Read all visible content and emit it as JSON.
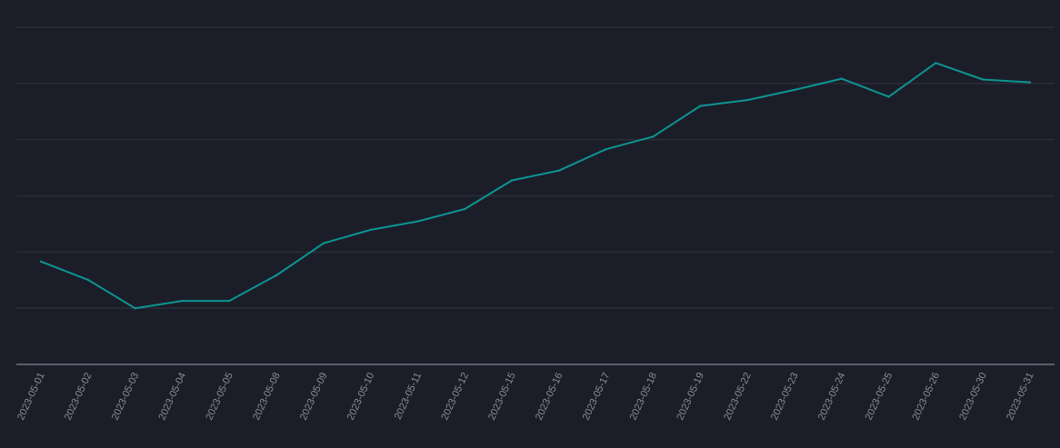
{
  "chart_data": {
    "type": "line",
    "title": "",
    "xlabel": "",
    "ylabel": "",
    "categories": [
      "2023-05-01",
      "2023-05-02",
      "2023-05-03",
      "2023-05-04",
      "2023-05-05",
      "2023-05-08",
      "2023-05-09",
      "2023-05-10",
      "2023-05-11",
      "2023-05-12",
      "2023-05-15",
      "2023-05-16",
      "2023-05-17",
      "2023-05-18",
      "2023-05-19",
      "2023-05-22",
      "2023-05-23",
      "2023-05-24",
      "2023-05-25",
      "2023-05-26",
      "2023-05-30",
      "2023-05-31"
    ],
    "series": [
      {
        "values": [
          0.83,
          0.505,
          0.0,
          0.13,
          0.13,
          0.585,
          1.155,
          1.395,
          1.545,
          1.765,
          2.275,
          2.45,
          2.83,
          3.055,
          3.6,
          3.705,
          3.885,
          4.085,
          3.765,
          4.365,
          4.07,
          4.02
        ],
        "color": "#0d9494"
      }
    ],
    "ylim": [
      -1,
      5
    ],
    "y_gridlines": [
      -1,
      0,
      1,
      2,
      3,
      4,
      5
    ],
    "grid": true,
    "legend": "none",
    "background": "#1b1e28",
    "grid_color": "#2a2e39",
    "axis_color": "#5a5e6a",
    "label_color": "#8a8e99"
  }
}
